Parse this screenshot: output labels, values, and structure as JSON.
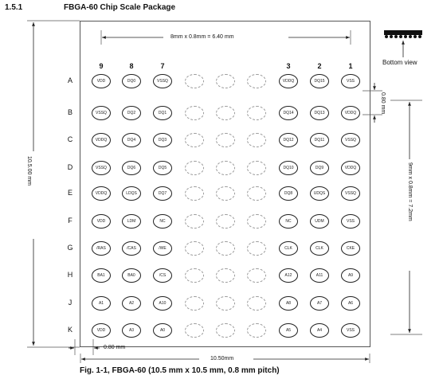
{
  "header": {
    "section": "1.5.1",
    "title": "FBGA-60 Chip Scale Package"
  },
  "columns": [
    "9",
    "8",
    "7",
    "",
    "",
    "",
    "3",
    "2",
    "1"
  ],
  "rows": [
    {
      "label": "A",
      "balls": [
        "VDD",
        "DQ0",
        "VSSQ",
        "",
        "",
        "",
        "VDDQ",
        "DQ15",
        "VSS"
      ]
    },
    {
      "label": "B",
      "balls": [
        "VSSQ",
        "DQ2",
        "DQ1",
        "",
        "",
        "",
        "DQ14",
        "DQ13",
        "VDDQ"
      ]
    },
    {
      "label": "C",
      "balls": [
        "VDDQ",
        "DQ4",
        "DQ3",
        "",
        "",
        "",
        "DQ12",
        "DQ11",
        "VSSQ"
      ]
    },
    {
      "label": "D",
      "balls": [
        "VSSQ",
        "DQ6",
        "DQ5",
        "",
        "",
        "",
        "DQ10",
        "DQ9",
        "VDDQ"
      ]
    },
    {
      "label": "E",
      "balls": [
        "VDDQ",
        "LDQS",
        "DQ7",
        "",
        "",
        "",
        "DQ8",
        "UDQS",
        "VSSQ"
      ]
    },
    {
      "label": "F",
      "balls": [
        "VDD",
        "LDM",
        "NC",
        "",
        "",
        "",
        "NC",
        "UDM",
        "VSS"
      ]
    },
    {
      "label": "G",
      "balls": [
        "/RAS",
        "/CAS",
        "/WE",
        "",
        "",
        "",
        "CLK",
        "CLK",
        "CKE"
      ]
    },
    {
      "label": "H",
      "balls": [
        "BA1",
        "BA0",
        "/CS",
        "",
        "",
        "",
        "A12",
        "A11",
        "A9"
      ]
    },
    {
      "label": "J",
      "balls": [
        "A1",
        "A2",
        "A10",
        "",
        "",
        "",
        "A8",
        "A7",
        "A6"
      ]
    },
    {
      "label": "K",
      "balls": [
        "VDD",
        "A3",
        "A0",
        "",
        "",
        "",
        "A5",
        "A4",
        "VSS"
      ]
    }
  ],
  "dims": {
    "top": "8mm x 0.8mm = 6.40 mm",
    "left": "10.5.00 mm",
    "right_pitch": "0.80 mm",
    "right_total": "9mm x 0.8mm = 7.2mm",
    "bottom_pitch": "0.80 mm",
    "bottom_total": "10.50mm"
  },
  "bottom_view": "Bottom view",
  "caption": "Fig. 1-1, FBGA-60 (10.5 mm x 10.5 mm, 0.8 mm pitch)"
}
